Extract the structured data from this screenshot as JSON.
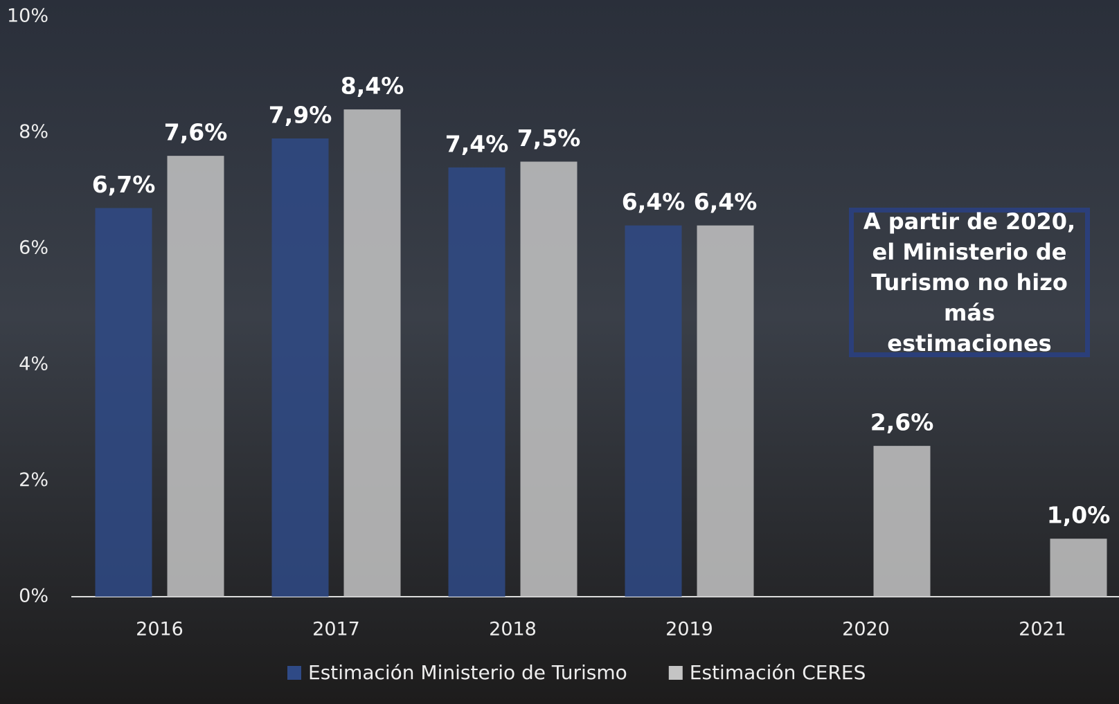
{
  "chart_data": {
    "type": "bar",
    "categories": [
      "2016",
      "2017",
      "2018",
      "2019",
      "2020",
      "2021"
    ],
    "series": [
      {
        "name": "Estimación Ministerio de Turismo",
        "color": "#2f4a86",
        "values": [
          6.7,
          7.9,
          7.4,
          6.4,
          null,
          null
        ],
        "value_labels": [
          "6,7%",
          "7,9%",
          "7,4%",
          "6,4%",
          null,
          null
        ]
      },
      {
        "name": "Estimación CERES",
        "color": "#c4c4c4",
        "values": [
          7.6,
          8.4,
          7.5,
          6.4,
          2.6,
          1.0
        ],
        "value_labels": [
          "7,6%",
          "8,4%",
          "7,5%",
          "6,4%",
          "2,6%",
          "1,0%"
        ]
      }
    ],
    "ylim": [
      0,
      10
    ],
    "yticks": [
      {
        "value": 0,
        "label": "0%"
      },
      {
        "value": 2,
        "label": "2%"
      },
      {
        "value": 4,
        "label": "4%"
      },
      {
        "value": 6,
        "label": "6%"
      },
      {
        "value": 8,
        "label": "8%"
      },
      {
        "value": 10,
        "label": "10%"
      }
    ],
    "grid": false,
    "legend": "bottom",
    "annotation": "A partir de 2020, el Ministerio de Turismo no hizo más estimaciones"
  }
}
